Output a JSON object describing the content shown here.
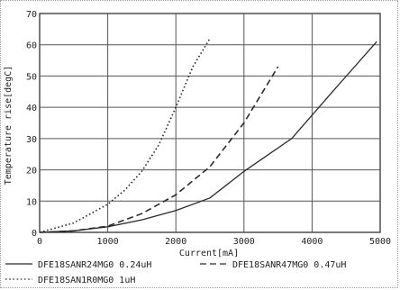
{
  "chart_data": {
    "type": "line",
    "xlabel": "Current[mA]",
    "ylabel": "Temperature rise[degC]",
    "xlim": [
      0,
      5000
    ],
    "ylim": [
      0,
      70
    ],
    "xticks": [
      0,
      1000,
      2000,
      3000,
      4000,
      5000
    ],
    "yticks": [
      0,
      10,
      20,
      30,
      40,
      50,
      60,
      70
    ],
    "grid": true,
    "legend_position": "bottom",
    "series": [
      {
        "name": "DFE18SANR24MG0 0.24uH",
        "style": "solid",
        "x": [
          0,
          500,
          1000,
          1500,
          2000,
          2500,
          3000,
          3700,
          4300,
          4950
        ],
        "y": [
          0,
          0.5,
          1.8,
          4,
          7,
          11,
          19.5,
          30,
          45,
          61
        ]
      },
      {
        "name": "DFE18SANR47MG0 0.47uH",
        "style": "dashed",
        "x": [
          0,
          500,
          1000,
          1500,
          2000,
          2500,
          3000,
          3500
        ],
        "y": [
          0,
          0.5,
          2,
          6,
          12,
          21,
          35,
          53
        ]
      },
      {
        "name": "DFE18SAN1R0MG0 1uH",
        "style": "dotted",
        "x": [
          0,
          500,
          1000,
          1250,
          1500,
          1750,
          2000,
          2250,
          2500
        ],
        "y": [
          0,
          3,
          9,
          13.5,
          19.5,
          28,
          40,
          53,
          62
        ]
      }
    ]
  },
  "colors": {
    "line": "#2a2a2a",
    "grid": "#555555",
    "background": "#ffffff"
  }
}
